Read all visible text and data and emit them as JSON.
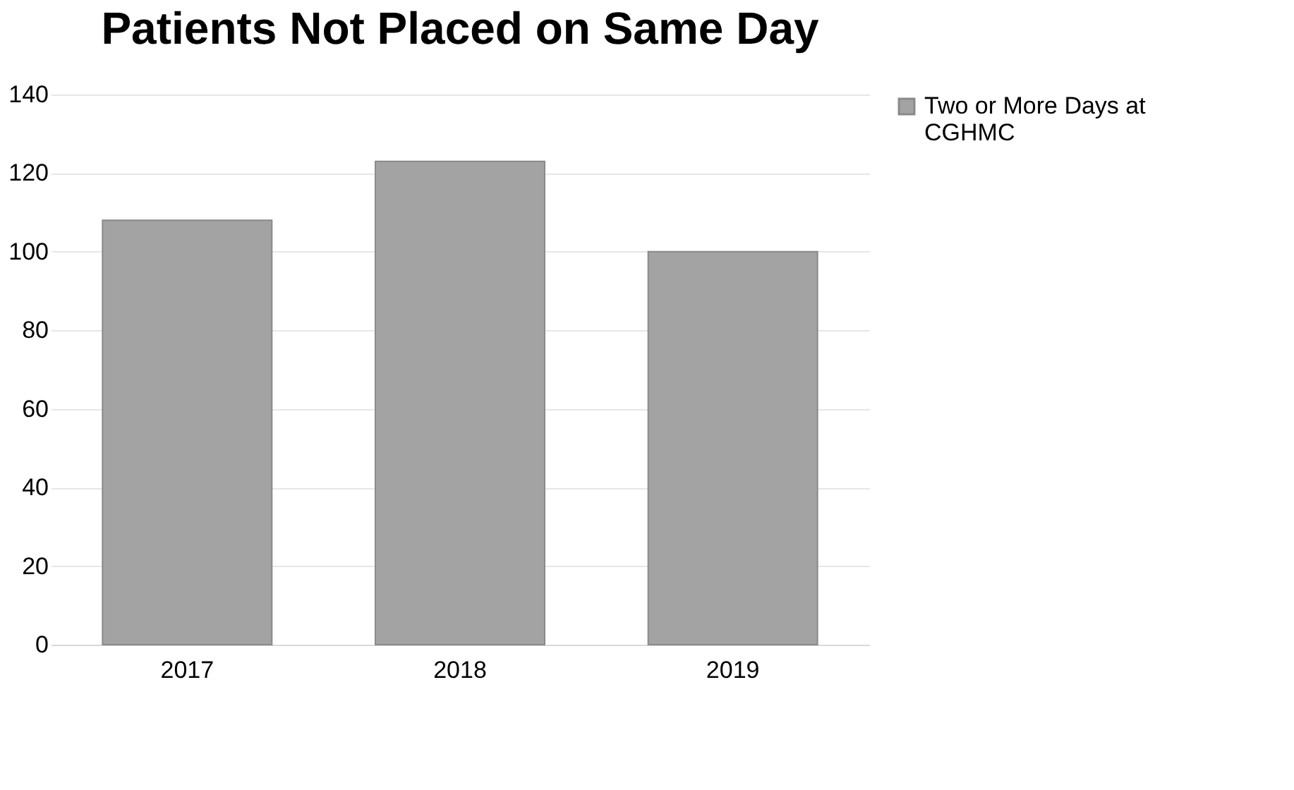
{
  "chart_data": {
    "type": "bar",
    "title": "Patients Not Placed on Same Day",
    "categories": [
      "2017",
      "2018",
      "2019"
    ],
    "series": [
      {
        "name": "Two or More Days at CGHMC",
        "color": "#a3a3a3",
        "values": [
          108,
          123,
          100
        ]
      }
    ],
    "ylim": [
      0,
      140
    ],
    "yticks": [
      0,
      20,
      40,
      60,
      80,
      100,
      120,
      140
    ],
    "grid": "y",
    "legend": "right"
  }
}
